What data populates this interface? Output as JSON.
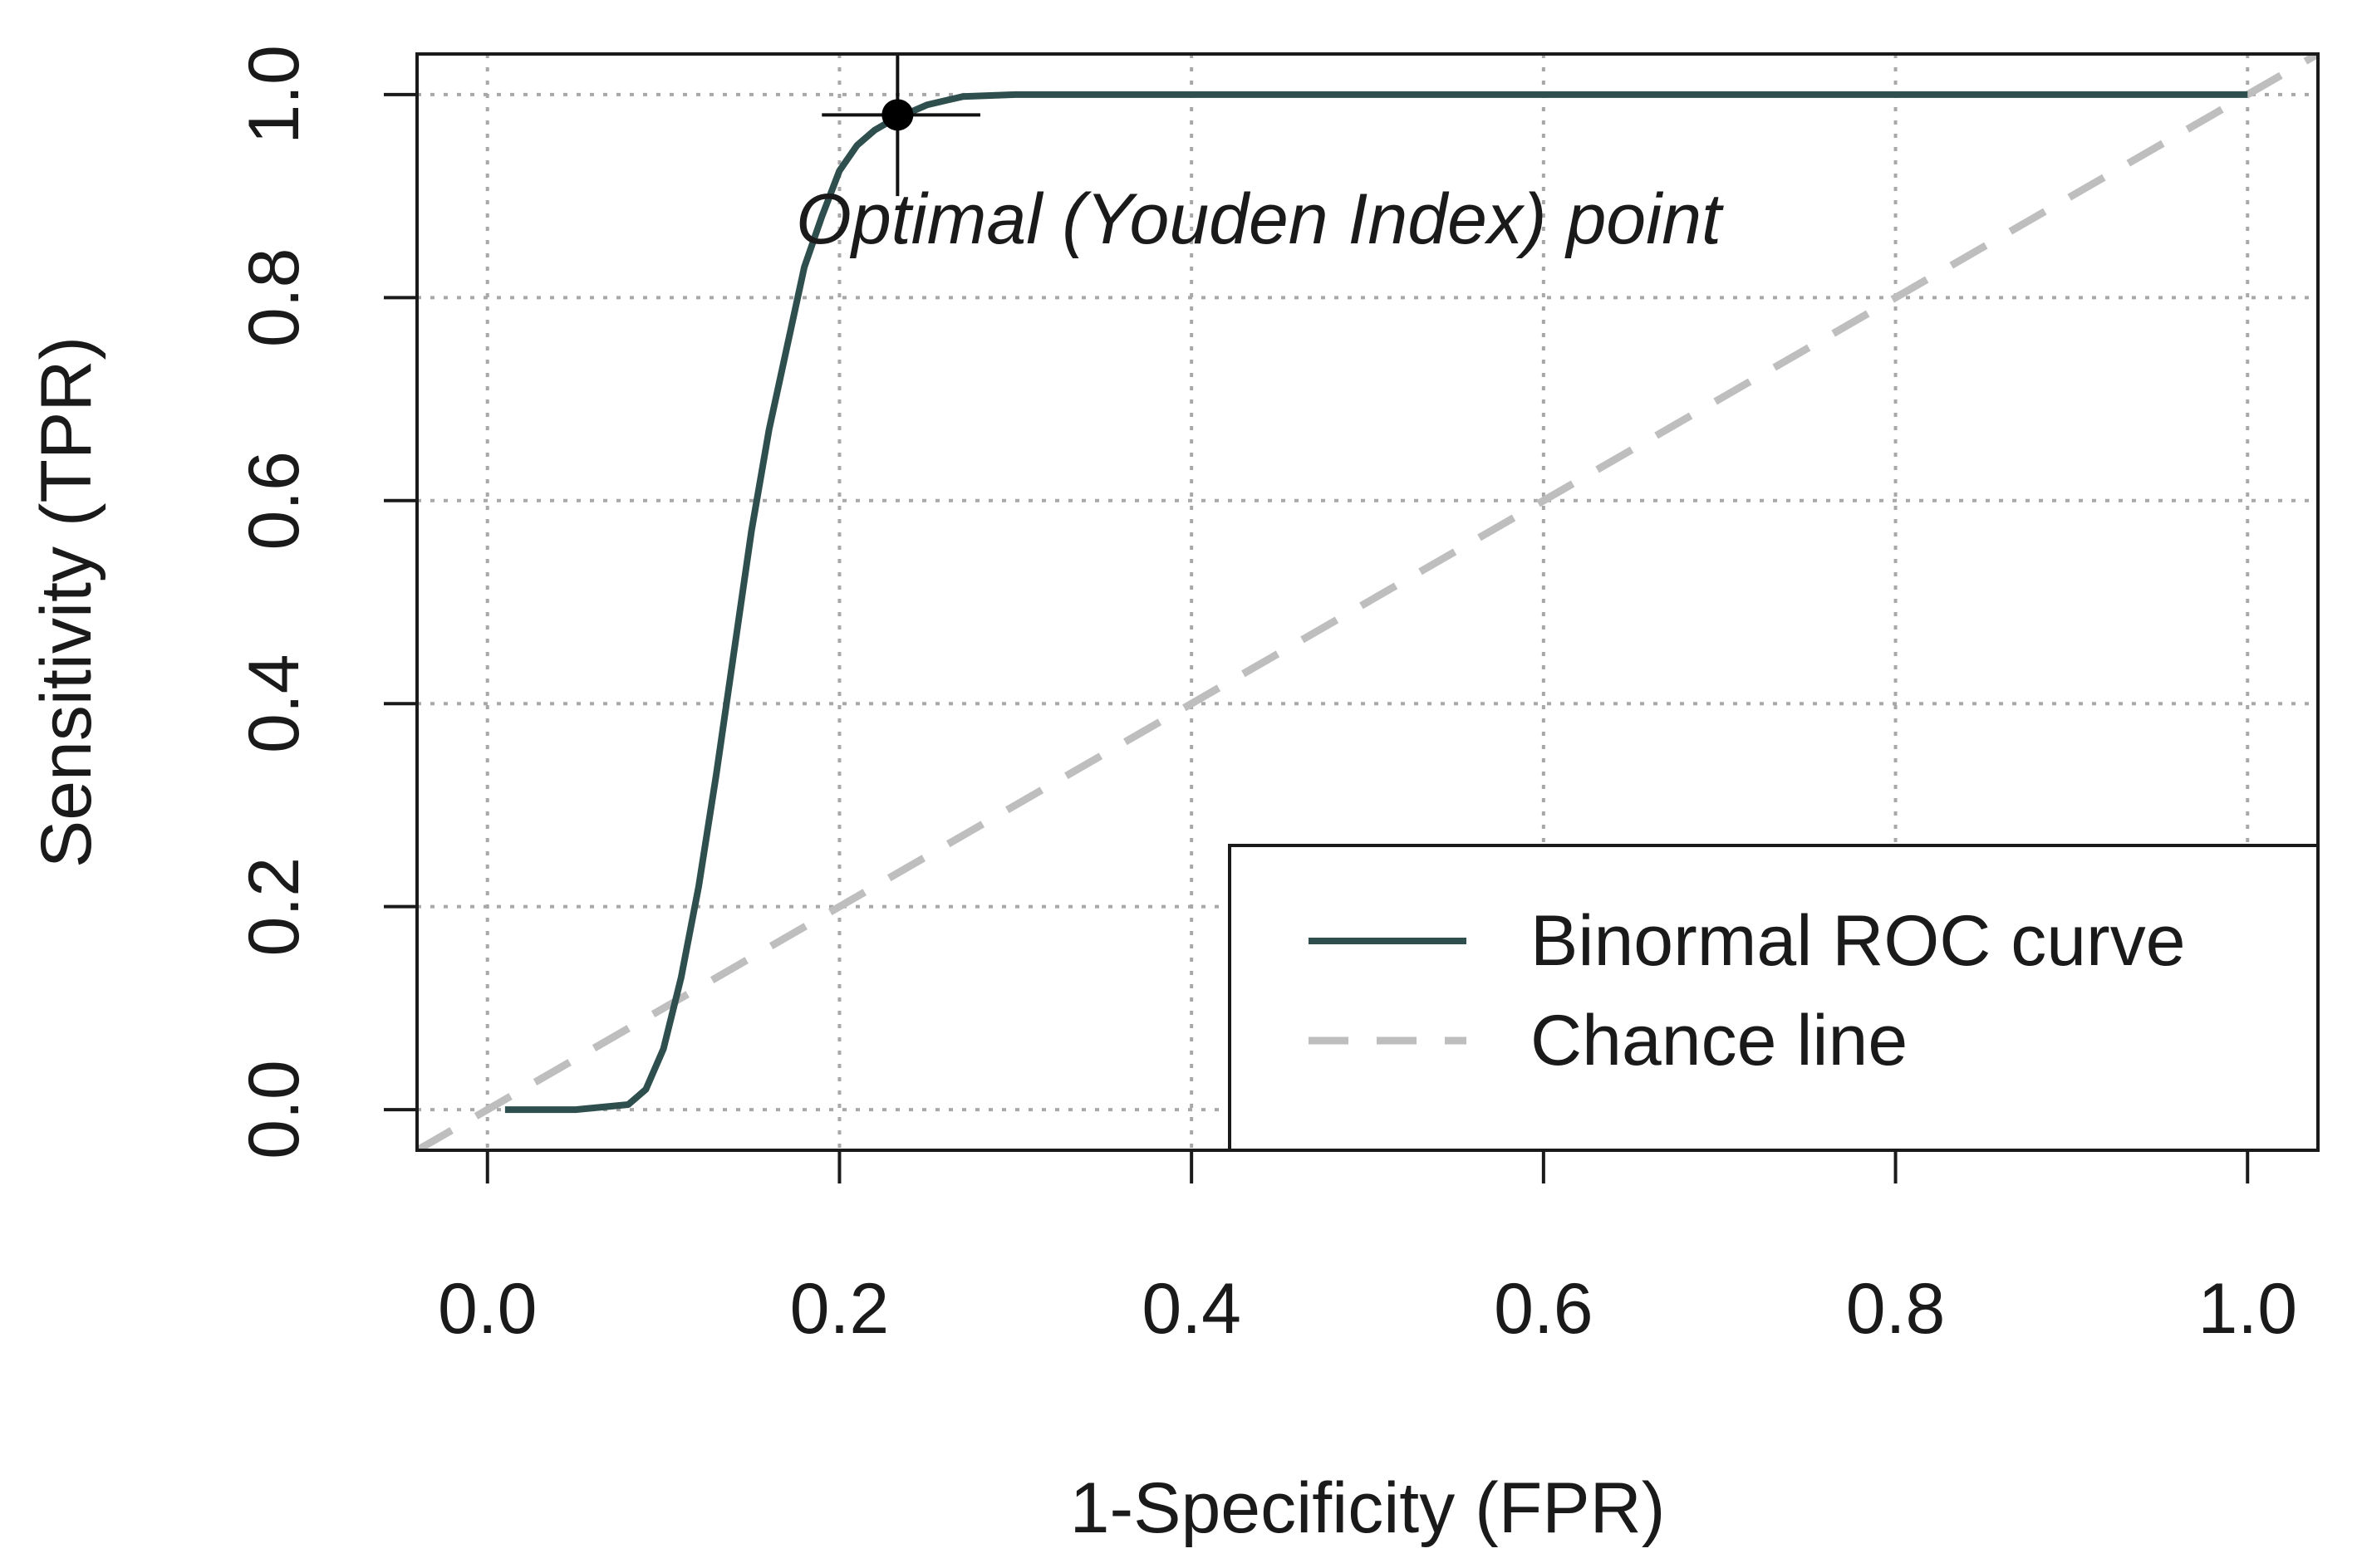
{
  "chart_data": {
    "type": "line",
    "title": "",
    "xlabel": "1-Specificity (FPR)",
    "ylabel": "Sensitivity (TPR)",
    "xlim": [
      -0.04,
      1.04
    ],
    "ylim": [
      -0.04,
      1.04
    ],
    "xticks": [
      0.0,
      0.2,
      0.4,
      0.6,
      0.8,
      1.0
    ],
    "yticks": [
      0.0,
      0.2,
      0.4,
      0.6,
      0.8,
      1.0
    ],
    "xtick_labels": [
      "0.0",
      "0.2",
      "0.4",
      "0.6",
      "0.8",
      "1.0"
    ],
    "ytick_labels": [
      "0.0",
      "0.2",
      "0.4",
      "0.6",
      "0.8",
      "1.0"
    ],
    "grid": true,
    "legend_position": "bottom-right",
    "series": [
      {
        "name": "Binormal ROC curve",
        "style": "solid",
        "color": "#2f4f4f",
        "x": [
          0.01,
          0.05,
          0.08,
          0.09,
          0.1,
          0.11,
          0.12,
          0.13,
          0.14,
          0.15,
          0.16,
          0.17,
          0.18,
          0.19,
          0.2,
          0.21,
          0.22,
          0.23,
          0.25,
          0.27,
          0.3,
          0.5,
          0.7,
          1.0
        ],
        "y": [
          0.0,
          0.0,
          0.005,
          0.02,
          0.06,
          0.13,
          0.22,
          0.33,
          0.45,
          0.57,
          0.67,
          0.75,
          0.83,
          0.88,
          0.925,
          0.95,
          0.965,
          0.975,
          0.99,
          0.998,
          1.0,
          1.0,
          1.0,
          1.0
        ]
      },
      {
        "name": "Chance line",
        "style": "dashed",
        "color": "#bebebe",
        "x": [
          -0.04,
          1.04
        ],
        "y": [
          -0.04,
          1.04
        ]
      }
    ],
    "annotations": [
      {
        "text": "Optimal (Youden Index) point",
        "x": 0.233,
        "y": 0.98,
        "x_error": [
          0.19,
          0.28
        ],
        "y_error": [
          0.9,
          1.04
        ]
      }
    ]
  }
}
